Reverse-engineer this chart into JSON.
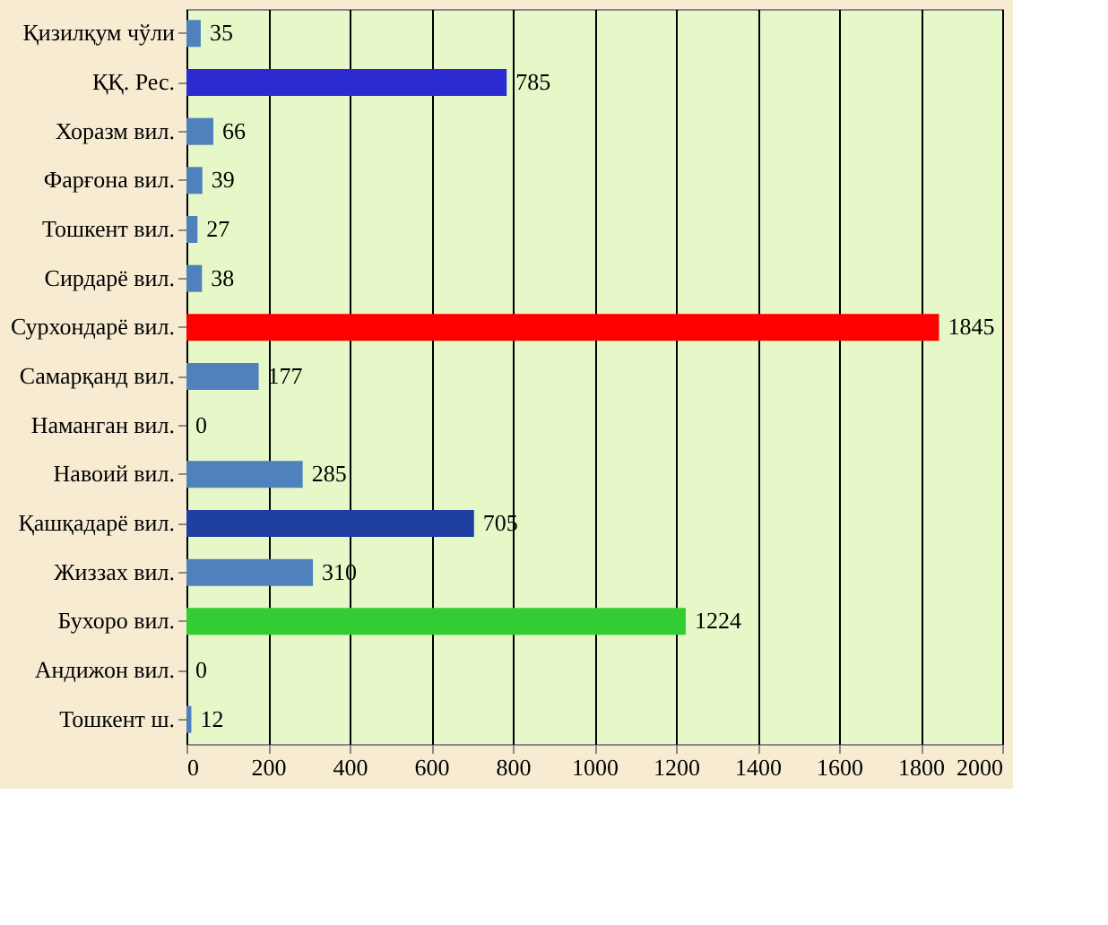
{
  "chart_data": {
    "type": "bar",
    "orientation": "horizontal",
    "categories": [
      "Қизилқум чўли",
      "ҚҚ. Рес.",
      "Хоразм вил.",
      "Фарғона вил.",
      "Тошкент вил.",
      "Сирдарё вил.",
      "Сурхондарё вил.",
      "Самарқанд вил.",
      "Наманган вил.",
      "Навоий вил.",
      "Қашқадарё вил.",
      "Жиззах вил.",
      "Бухоро вил.",
      "Андижон вил.",
      "Тошкент ш."
    ],
    "values": [
      35,
      785,
      66,
      39,
      27,
      38,
      1845,
      177,
      0,
      285,
      705,
      310,
      1224,
      0,
      12
    ],
    "colors": [
      "#4f81bd",
      "#2b2bd0",
      "#4f81bd",
      "#4f81bd",
      "#4f81bd",
      "#4f81bd",
      "#ff0000",
      "#4f81bd",
      "#4f81bd",
      "#4f81bd",
      "#1f3fa0",
      "#4f81bd",
      "#33cc33",
      "#4f81bd",
      "#4f81bd"
    ],
    "xlim": [
      0,
      2000
    ],
    "xticks": [
      0,
      200,
      400,
      600,
      800,
      1000,
      1200,
      1400,
      1600,
      1800,
      2000
    ],
    "grid": "x",
    "data_labels": true
  }
}
